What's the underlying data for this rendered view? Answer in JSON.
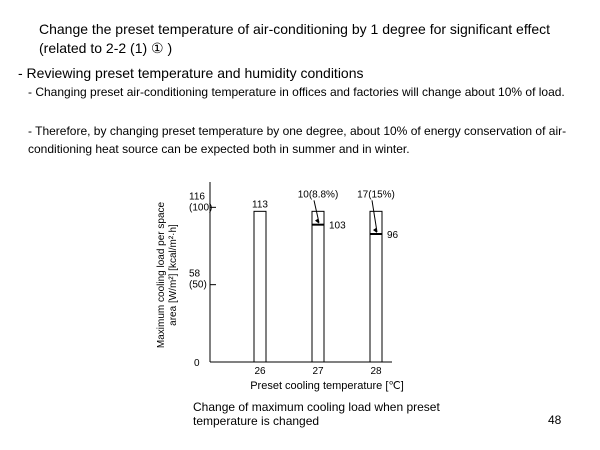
{
  "slide": {
    "title": "Change the preset temperature of air-conditioning  by 1 degree for significant effect (related to 2-2 (1) ① )",
    "bullet_heading": "- Reviewing preset temperature and humidity conditions",
    "sub_bullet_1": "- Changing preset air-conditioning temperature in offices and factories will change about 10% of load.",
    "sub_bullet_2": "- Therefore, by changing preset temperature by one degree, about 10% of energy conservation of air-conditioning heat source can be expected both in summer and in winter.",
    "caption": "Change of maximum cooling load when preset temperature is changed",
    "page_number": "48"
  },
  "chart_data": {
    "type": "bar",
    "title": "",
    "xlabel": "Preset cooling temperature [℃]",
    "ylabel_line1": "Maximum cooling load per space",
    "ylabel_line2": "area [W/m²] [kcal/m²·h]",
    "ylim": [
      0,
      135
    ],
    "y_ticks": [
      {
        "value": 116,
        "label_w": "116",
        "label_kcal": "(100)"
      },
      {
        "value": 58,
        "label_w": "58",
        "label_kcal": "(50)"
      },
      {
        "value": 0,
        "label_w": "0",
        "label_kcal": ""
      }
    ],
    "categories": [
      "26",
      "27",
      "28"
    ],
    "values": [
      113,
      103,
      96
    ],
    "reference_value": 113,
    "reduction_labels": [
      "",
      "10(8.8%)",
      "17(15%)"
    ],
    "value_labels": [
      "113",
      "103",
      "96"
    ],
    "grid": false,
    "legend": "none"
  }
}
